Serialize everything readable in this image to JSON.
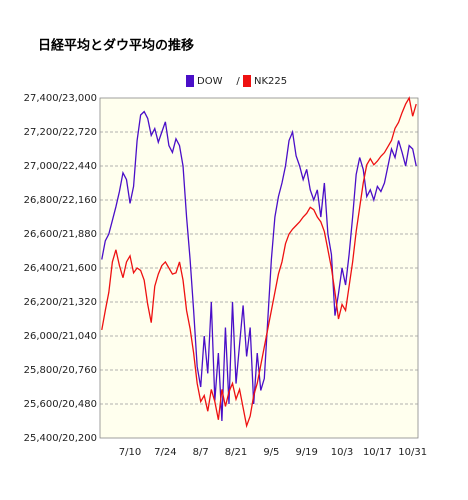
{
  "chart_data": {
    "type": "line",
    "title": "日経平均とダウ平均の推移",
    "legend_separator": "/",
    "categories": [
      null,
      null,
      null,
      null,
      null,
      null,
      null,
      null,
      "7/10",
      null,
      null,
      null,
      null,
      null,
      null,
      null,
      null,
      null,
      "7/24",
      null,
      null,
      null,
      null,
      null,
      null,
      null,
      null,
      null,
      "8/7",
      null,
      null,
      null,
      null,
      null,
      null,
      null,
      null,
      null,
      "8/21",
      null,
      null,
      null,
      null,
      null,
      null,
      null,
      null,
      null,
      "9/5",
      null,
      null,
      null,
      null,
      null,
      null,
      null,
      null,
      null,
      "9/19",
      null,
      null,
      null,
      null,
      null,
      null,
      null,
      null,
      null,
      "10/3",
      null,
      null,
      null,
      null,
      null,
      null,
      null,
      null,
      null,
      "10/17",
      null,
      null,
      null,
      null,
      null,
      null,
      null,
      null,
      null,
      "10/31",
      null
    ],
    "series": [
      {
        "name": "DOW",
        "color": "#4a0fc8",
        "values": [
          26450,
          26560,
          26600,
          26680,
          26760,
          26850,
          26960,
          26920,
          26780,
          26880,
          27150,
          27300,
          27320,
          27280,
          27180,
          27220,
          27140,
          27200,
          27260,
          27120,
          27080,
          27160,
          27120,
          27000,
          26700,
          26450,
          26150,
          25820,
          25700,
          26000,
          25780,
          26200,
          25620,
          25900,
          25500,
          26050,
          25600,
          26200,
          25720,
          25950,
          26180,
          25880,
          26050,
          25600,
          25900,
          25680,
          25750,
          26100,
          26450,
          26700,
          26820,
          26900,
          27000,
          27150,
          27200,
          27060,
          27000,
          26920,
          26980,
          26860,
          26800,
          26860,
          26700,
          26900,
          26600,
          26480,
          26120,
          26250,
          26400,
          26300,
          26480,
          26700,
          26950,
          27050,
          26980,
          26820,
          26860,
          26800,
          26880,
          26850,
          26900,
          27000,
          27100,
          27050,
          27150,
          27080,
          27000,
          27120,
          27100,
          27000
        ]
      },
      {
        "name": "NK225",
        "color": "#ee1111",
        "axis": "y2",
        "values": [
          21090,
          21250,
          21400,
          21650,
          21750,
          21620,
          21520,
          21650,
          21700,
          21560,
          21600,
          21580,
          21500,
          21300,
          21150,
          21450,
          21550,
          21620,
          21650,
          21600,
          21550,
          21560,
          21650,
          21500,
          21250,
          21100,
          20900,
          20650,
          20500,
          20550,
          20420,
          20600,
          20500,
          20350,
          20600,
          20460,
          20580,
          20650,
          20520,
          20600,
          20450,
          20300,
          20380,
          20550,
          20650,
          20800,
          20950,
          21100,
          21250,
          21400,
          21550,
          21650,
          21800,
          21880,
          21920,
          21950,
          21980,
          22020,
          22050,
          22100,
          22080,
          22020,
          21980,
          21900,
          21750,
          21600,
          21400,
          21180,
          21300,
          21250,
          21450,
          21650,
          21900,
          22100,
          22300,
          22450,
          22500,
          22450,
          22480,
          22520,
          22550,
          22600,
          22650,
          22750,
          22800,
          22880,
          22950,
          23000,
          22850,
          22950
        ]
      }
    ],
    "ylim": [
      25400,
      27400
    ],
    "yticks": [
      {
        "value": 25400,
        "label": "25,400/20,200"
      },
      {
        "value": 25600,
        "label": "25,600/20,480"
      },
      {
        "value": 25800,
        "label": "25,800/20,760"
      },
      {
        "value": 26000,
        "label": "26,000/21,040"
      },
      {
        "value": 26200,
        "label": "26,200/21,320"
      },
      {
        "value": 26400,
        "label": "26,400/21,600"
      },
      {
        "value": 26600,
        "label": "26,600/21,880"
      },
      {
        "value": 26800,
        "label": "26,800/22,160"
      },
      {
        "value": 27000,
        "label": "27,000/22,440"
      },
      {
        "value": 27200,
        "label": "27,200/22,720"
      },
      {
        "value": 27400,
        "label": "27,400/23,000"
      }
    ],
    "y2lim": [
      20200,
      23000
    ],
    "grid": true
  }
}
